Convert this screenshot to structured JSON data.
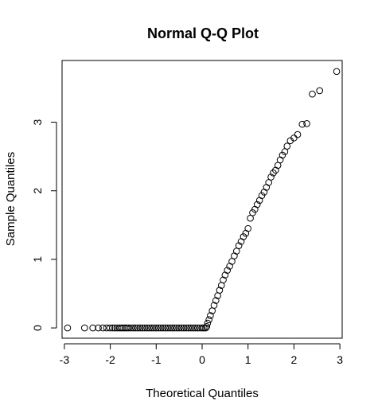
{
  "chart_data": {
    "type": "scatter",
    "title": "Normal Q-Q Plot",
    "xlabel": "Theoretical Quantiles",
    "ylabel": "Sample Quantiles",
    "xlim": [
      -3.05,
      3.05
    ],
    "ylim": [
      -0.15,
      3.9
    ],
    "x_ticks": [
      -3,
      -2,
      -1,
      0,
      1,
      2,
      3
    ],
    "x_tick_labels": [
      "-3",
      "-2",
      "-1",
      "0",
      "1",
      "2",
      "3"
    ],
    "y_ticks": [
      0,
      1,
      2,
      3
    ],
    "y_tick_labels": [
      "0",
      "1",
      "2",
      "3"
    ],
    "grid": false,
    "legend": "none",
    "marker": "open-circle",
    "points": {
      "x": [
        -2.93,
        -2.56,
        -2.38,
        -2.26,
        -2.16,
        -2.08,
        -2.01,
        -1.95,
        -1.9,
        -1.85,
        -1.8,
        -1.76,
        -1.72,
        -1.68,
        -1.64,
        -1.6,
        -1.55,
        -1.5,
        -1.45,
        -1.4,
        -1.35,
        -1.3,
        -1.25,
        -1.2,
        -1.15,
        -1.1,
        -1.05,
        -1.0,
        -0.95,
        -0.9,
        -0.85,
        -0.8,
        -0.75,
        -0.7,
        -0.65,
        -0.6,
        -0.55,
        -0.5,
        -0.45,
        -0.4,
        -0.35,
        -0.3,
        -0.25,
        -0.2,
        -0.15,
        -0.1,
        -0.05,
        0.0,
        0.04,
        0.08,
        0.1,
        0.12,
        0.15,
        0.18,
        0.22,
        0.26,
        0.3,
        0.34,
        0.38,
        0.42,
        0.46,
        0.5,
        0.55,
        0.6,
        0.65,
        0.7,
        0.75,
        0.8,
        0.85,
        0.9,
        0.95,
        1.0,
        1.05,
        1.1,
        1.15,
        1.2,
        1.25,
        1.3,
        1.35,
        1.4,
        1.45,
        1.5,
        1.55,
        1.6,
        1.65,
        1.7,
        1.75,
        1.8,
        1.85,
        1.92,
        2.0,
        2.08,
        2.18,
        2.28,
        2.4,
        2.56,
        2.93
      ],
      "y": [
        0.0,
        0.0,
        0.0,
        0.0,
        0.0,
        0.0,
        0.0,
        0.0,
        0.0,
        0.0,
        0.0,
        0.0,
        0.0,
        0.0,
        0.0,
        0.0,
        0.0,
        0.0,
        0.0,
        0.0,
        0.0,
        0.0,
        0.0,
        0.0,
        0.0,
        0.0,
        0.0,
        0.0,
        0.0,
        0.0,
        0.0,
        0.0,
        0.0,
        0.0,
        0.0,
        0.0,
        0.0,
        0.0,
        0.0,
        0.0,
        0.0,
        0.0,
        0.0,
        0.0,
        0.0,
        0.0,
        0.0,
        0.0,
        0.0,
        0.0,
        0.02,
        0.07,
        0.12,
        0.18,
        0.25,
        0.33,
        0.4,
        0.47,
        0.55,
        0.62,
        0.7,
        0.77,
        0.84,
        0.9,
        0.97,
        1.05,
        1.12,
        1.2,
        1.26,
        1.33,
        1.38,
        1.45,
        1.6,
        1.68,
        1.73,
        1.8,
        1.86,
        1.93,
        1.98,
        2.05,
        2.12,
        2.2,
        2.26,
        2.3,
        2.37,
        2.45,
        2.52,
        2.57,
        2.65,
        2.73,
        2.77,
        2.82,
        2.97,
        2.98,
        3.41,
        3.46,
        3.74
      ]
    }
  }
}
